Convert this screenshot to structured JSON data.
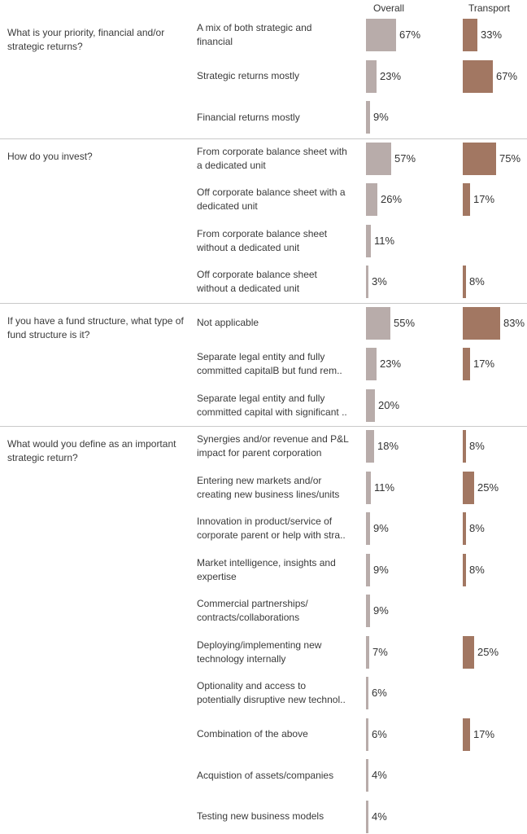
{
  "colors": {
    "overall": "#b8acaa",
    "transport": "#a27762",
    "separator": "#c9c9c9"
  },
  "chart_data": {
    "type": "bar",
    "orientation": "horizontal",
    "xlim": [
      0,
      100
    ],
    "unit": "%",
    "series_headers": [
      "Overall",
      "Transport"
    ],
    "groups": [
      {
        "question": "What is your priority, financial and/or strategic returns?",
        "items": [
          {
            "label_lines": [
              "A mix of both strategic and",
              "financial"
            ],
            "overall": 67,
            "transport": 33
          },
          {
            "label_lines": [
              "Strategic returns mostly"
            ],
            "overall": 23,
            "transport": 67
          },
          {
            "label_lines": [
              "Financial returns mostly"
            ],
            "overall": 9,
            "transport": null
          }
        ]
      },
      {
        "question": "How do you invest?",
        "items": [
          {
            "label_lines": [
              "From corporate balance sheet with",
              "a dedicated unit"
            ],
            "overall": 57,
            "transport": 75
          },
          {
            "label_lines": [
              "Off corporate balance sheet with a",
              "dedicated unit"
            ],
            "overall": 26,
            "transport": 17
          },
          {
            "label_lines": [
              "From corporate balance sheet",
              "without a dedicated unit"
            ],
            "overall": 11,
            "transport": null
          },
          {
            "label_lines": [
              "Off corporate balance sheet",
              "without a dedicated unit"
            ],
            "overall": 3,
            "transport": 8
          }
        ]
      },
      {
        "question": "If you have a fund structure, what type of fund structure is it?",
        "items": [
          {
            "label_lines": [
              "Not applicable"
            ],
            "overall": 55,
            "transport": 83
          },
          {
            "label_lines": [
              "Separate legal entity and fully",
              "committed capitalB  but fund rem.."
            ],
            "overall": 23,
            "transport": 17
          },
          {
            "label_lines": [
              "Separate legal entity and fully",
              "committed capital with significant .."
            ],
            "overall": 20,
            "transport": null
          }
        ]
      },
      {
        "question": "What would you define as an important strategic return?",
        "items": [
          {
            "label_lines": [
              "Synergies and/or revenue and P&L",
              "impact for parent corporation"
            ],
            "overall": 18,
            "transport": 8
          },
          {
            "label_lines": [
              "Entering new markets and/or",
              "creating new business lines/units"
            ],
            "overall": 11,
            "transport": 25
          },
          {
            "label_lines": [
              "Innovation in product/service of",
              "corporate parent or help with stra.."
            ],
            "overall": 9,
            "transport": 8
          },
          {
            "label_lines": [
              "Market intelligence, insights and",
              "expertise"
            ],
            "overall": 9,
            "transport": 8
          },
          {
            "label_lines": [
              "Commercial partnerships/",
              "contracts/collaborations"
            ],
            "overall": 9,
            "transport": null
          },
          {
            "label_lines": [
              "Deploying/implementing new",
              "technology internally"
            ],
            "overall": 7,
            "transport": 25
          },
          {
            "label_lines": [
              "Optionality and access to",
              "potentially disruptive new technol.."
            ],
            "overall": 6,
            "transport": null
          },
          {
            "label_lines": [
              "Combination of the above"
            ],
            "overall": 6,
            "transport": 17
          },
          {
            "label_lines": [
              "Acquistion of assets/companies"
            ],
            "overall": 4,
            "transport": null
          },
          {
            "label_lines": [
              "Testing new business models"
            ],
            "overall": 4,
            "transport": null
          }
        ]
      }
    ]
  }
}
